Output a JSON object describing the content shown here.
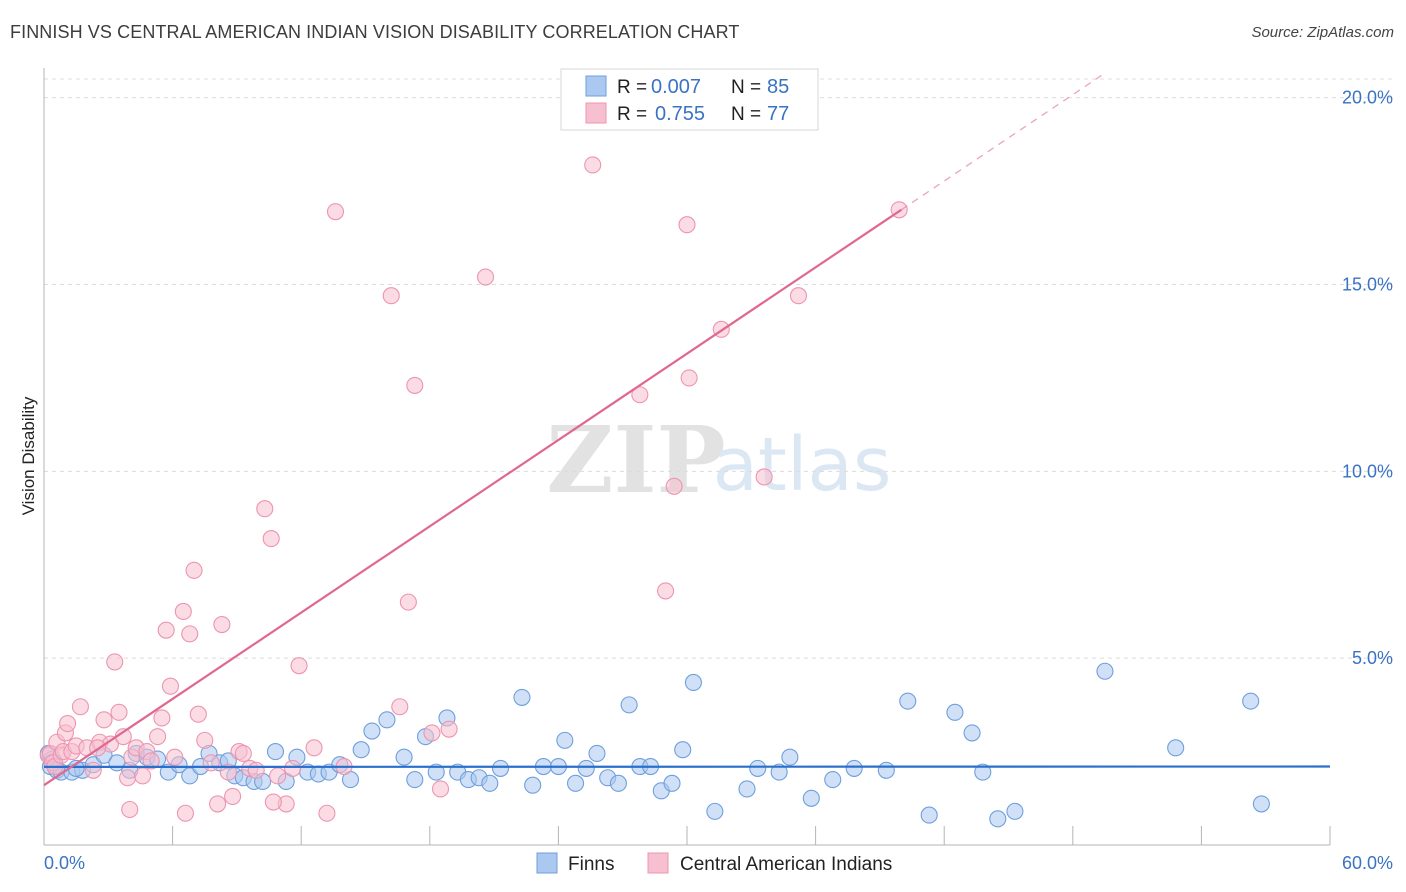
{
  "title": "FINNISH VS CENTRAL AMERICAN INDIAN VISION DISABILITY CORRELATION CHART",
  "source": "Source: ZipAtlas.com",
  "watermark": {
    "zip": "ZIP",
    "atlas": "atlas"
  },
  "colors": {
    "finns_fill": "#aac8f0",
    "finns_stroke": "#6f9fdc",
    "finns_line": "#2a6fcc",
    "cai_fill": "#f7c0d0",
    "cai_stroke": "#ec95b0",
    "cai_line": "#e06890",
    "axis_text": "#3a72c4",
    "grid": "#dcdcdc"
  },
  "chart_data": {
    "type": "scatter",
    "title": "FINNISH VS CENTRAL AMERICAN INDIAN VISION DISABILITY CORRELATION CHART",
    "xlabel": "",
    "ylabel": "Vision Disability",
    "xlim": [
      0,
      60
    ],
    "ylim": [
      0,
      20.5
    ],
    "x_tick_labels": [
      "0.0%",
      "60.0%"
    ],
    "y_ticks": [
      5,
      10,
      15,
      20
    ],
    "y_tick_labels": [
      "5.0%",
      "10.0%",
      "15.0%",
      "20.0%"
    ],
    "grid": true,
    "legend_position": "top-center",
    "stats": [
      {
        "r_label": "R =",
        "r_value": "0.007",
        "n_label": "N =",
        "n_value": "85"
      },
      {
        "r_label": "R =",
        "r_value": "0.755",
        "n_label": "N =",
        "n_value": "77"
      }
    ],
    "series": [
      {
        "name": "Finns",
        "trend": {
          "slope": 0.00017,
          "intercept": 2.09,
          "x_range": [
            0,
            60
          ]
        },
        "points": [
          [
            0.2,
            2.45
          ],
          [
            0.3,
            2.1
          ],
          [
            0.4,
            2.3
          ],
          [
            0.5,
            2.2
          ],
          [
            0.6,
            2.0
          ],
          [
            0.8,
            1.95
          ],
          [
            1.3,
            1.95
          ],
          [
            1.8,
            2.0
          ],
          [
            2.3,
            2.15
          ],
          [
            2.8,
            2.4
          ],
          [
            3.4,
            2.2
          ],
          [
            4.0,
            2.0
          ],
          [
            4.3,
            2.45
          ],
          [
            4.8,
            2.35
          ],
          [
            5.3,
            2.3
          ],
          [
            5.8,
            1.95
          ],
          [
            6.3,
            2.15
          ],
          [
            6.8,
            1.85
          ],
          [
            7.3,
            2.1
          ],
          [
            7.7,
            2.45
          ],
          [
            8.2,
            2.2
          ],
          [
            8.6,
            2.25
          ],
          [
            8.9,
            1.85
          ],
          [
            9.3,
            1.8
          ],
          [
            9.8,
            1.7
          ],
          [
            10.2,
            1.7
          ],
          [
            10.8,
            2.5
          ],
          [
            11.3,
            1.7
          ],
          [
            11.8,
            2.35
          ],
          [
            12.3,
            1.95
          ],
          [
            12.8,
            1.9
          ],
          [
            13.3,
            1.95
          ],
          [
            13.8,
            2.15
          ],
          [
            14.3,
            1.75
          ],
          [
            14.8,
            2.55
          ],
          [
            15.3,
            3.05
          ],
          [
            16.0,
            3.35
          ],
          [
            16.8,
            2.35
          ],
          [
            17.3,
            1.75
          ],
          [
            17.8,
            2.9
          ],
          [
            18.3,
            1.95
          ],
          [
            18.8,
            3.4
          ],
          [
            19.3,
            1.95
          ],
          [
            19.8,
            1.75
          ],
          [
            20.3,
            1.8
          ],
          [
            20.8,
            1.65
          ],
          [
            21.3,
            2.05
          ],
          [
            22.3,
            3.95
          ],
          [
            22.8,
            1.6
          ],
          [
            23.3,
            2.1
          ],
          [
            24.0,
            2.1
          ],
          [
            24.3,
            2.8
          ],
          [
            24.8,
            1.65
          ],
          [
            25.3,
            2.05
          ],
          [
            25.8,
            2.45
          ],
          [
            26.3,
            1.8
          ],
          [
            26.8,
            1.65
          ],
          [
            27.3,
            3.75
          ],
          [
            27.8,
            2.1
          ],
          [
            28.3,
            2.1
          ],
          [
            28.8,
            1.45
          ],
          [
            29.3,
            1.65
          ],
          [
            29.8,
            2.55
          ],
          [
            30.3,
            4.35
          ],
          [
            31.3,
            0.9
          ],
          [
            32.8,
            1.5
          ],
          [
            33.3,
            2.05
          ],
          [
            34.3,
            1.95
          ],
          [
            34.8,
            2.35
          ],
          [
            35.8,
            1.25
          ],
          [
            36.8,
            1.75
          ],
          [
            37.8,
            2.05
          ],
          [
            39.3,
            2.0
          ],
          [
            40.3,
            3.85
          ],
          [
            41.3,
            0.8
          ],
          [
            42.5,
            3.55
          ],
          [
            43.3,
            3.0
          ],
          [
            43.8,
            1.95
          ],
          [
            44.5,
            0.7
          ],
          [
            45.3,
            0.9
          ],
          [
            49.5,
            4.65
          ],
          [
            52.8,
            2.6
          ],
          [
            56.3,
            3.85
          ],
          [
            56.8,
            1.1
          ],
          [
            1.5,
            2.05
          ]
        ]
      },
      {
        "name": "Central American Indians",
        "trend": {
          "slope": 0.385,
          "intercept": 1.6,
          "x_range": [
            0,
            40
          ],
          "dashed_x_range": [
            40,
            49.5
          ]
        },
        "points": [
          [
            0.2,
            2.4
          ],
          [
            0.3,
            2.45
          ],
          [
            0.4,
            2.2
          ],
          [
            0.5,
            2.1
          ],
          [
            0.6,
            2.75
          ],
          [
            0.8,
            2.4
          ],
          [
            0.9,
            2.5
          ],
          [
            1.0,
            3.0
          ],
          [
            1.1,
            3.25
          ],
          [
            1.3,
            2.5
          ],
          [
            1.5,
            2.65
          ],
          [
            1.7,
            3.7
          ],
          [
            2.0,
            2.6
          ],
          [
            2.3,
            2.0
          ],
          [
            2.6,
            2.75
          ],
          [
            2.8,
            3.35
          ],
          [
            3.1,
            2.7
          ],
          [
            3.3,
            4.9
          ],
          [
            3.5,
            3.55
          ],
          [
            3.7,
            2.9
          ],
          [
            3.9,
            1.8
          ],
          [
            4.1,
            2.35
          ],
          [
            4.3,
            2.6
          ],
          [
            4.6,
            1.85
          ],
          [
            4.8,
            2.5
          ],
          [
            5.0,
            2.25
          ],
          [
            5.3,
            2.9
          ],
          [
            5.5,
            3.4
          ],
          [
            5.7,
            5.75
          ],
          [
            5.9,
            4.25
          ],
          [
            6.1,
            2.35
          ],
          [
            6.5,
            6.25
          ],
          [
            6.8,
            5.65
          ],
          [
            7.0,
            7.35
          ],
          [
            7.2,
            3.5
          ],
          [
            7.5,
            2.8
          ],
          [
            7.8,
            2.2
          ],
          [
            8.1,
            1.1
          ],
          [
            8.3,
            5.9
          ],
          [
            8.6,
            1.95
          ],
          [
            8.8,
            1.3
          ],
          [
            9.1,
            2.5
          ],
          [
            9.3,
            2.45
          ],
          [
            9.6,
            2.05
          ],
          [
            9.9,
            2.0
          ],
          [
            10.3,
            9.0
          ],
          [
            10.6,
            8.2
          ],
          [
            10.9,
            1.85
          ],
          [
            11.3,
            1.1
          ],
          [
            11.6,
            2.05
          ],
          [
            11.9,
            4.8
          ],
          [
            12.6,
            2.6
          ],
          [
            13.2,
            0.85
          ],
          [
            13.6,
            16.95
          ],
          [
            14.0,
            2.1
          ],
          [
            16.2,
            14.7
          ],
          [
            16.6,
            3.7
          ],
          [
            17.0,
            6.5
          ],
          [
            17.3,
            12.3
          ],
          [
            18.1,
            3.0
          ],
          [
            18.5,
            1.5
          ],
          [
            18.9,
            3.1
          ],
          [
            20.6,
            15.2
          ],
          [
            25.6,
            18.2
          ],
          [
            27.8,
            12.05
          ],
          [
            29.0,
            6.8
          ],
          [
            29.4,
            9.6
          ],
          [
            30.0,
            16.6
          ],
          [
            30.1,
            12.5
          ],
          [
            31.6,
            13.8
          ],
          [
            33.6,
            9.85
          ],
          [
            35.2,
            14.7
          ],
          [
            39.9,
            17.0
          ],
          [
            2.5,
            2.6
          ],
          [
            4.0,
            0.95
          ],
          [
            6.6,
            0.85
          ],
          [
            10.7,
            1.15
          ]
        ]
      }
    ]
  }
}
